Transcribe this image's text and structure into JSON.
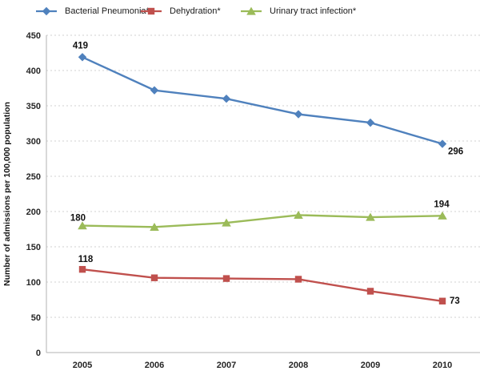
{
  "chart_data": {
    "type": "line",
    "title": "",
    "ylabel": "Number of admissions per 100,000 population",
    "xlabel": "",
    "categories": [
      "2005",
      "2006",
      "2007",
      "2008",
      "2009",
      "2010"
    ],
    "ylim": [
      0,
      450
    ],
    "yticks": [
      0,
      50,
      100,
      150,
      200,
      250,
      300,
      350,
      400,
      450
    ],
    "grid": "horizontal-dotted",
    "legend_position": "top",
    "axis_color": "#b3b3b3",
    "gridline_color": "#d2d2d2",
    "data_label_color": "#111111",
    "series": [
      {
        "name": "Bacterial Pneumonia*",
        "color": "#4F81BD",
        "marker": "diamond",
        "values": [
          419,
          372,
          360,
          338,
          326,
          296
        ],
        "point_labels": [
          {
            "index": 0,
            "text": "419",
            "anchor": "end",
            "dx": 7,
            "dy": -11
          },
          {
            "index": 5,
            "text": "296",
            "anchor": "start",
            "dx": 7,
            "dy": 13
          }
        ]
      },
      {
        "name": "Dehydration*",
        "color": "#C0504D",
        "marker": "square",
        "values": [
          118,
          106,
          105,
          104,
          87,
          73
        ],
        "point_labels": [
          {
            "index": 0,
            "text": "118",
            "anchor": "middle",
            "dx": 4,
            "dy": -9
          },
          {
            "index": 5,
            "text": "73",
            "anchor": "start",
            "dx": 9,
            "dy": 3
          }
        ]
      },
      {
        "name": "Urinary tract infection*",
        "color": "#9BBB59",
        "marker": "triangle",
        "values": [
          180,
          178,
          184,
          195,
          192,
          194
        ],
        "point_labels": [
          {
            "index": 0,
            "text": "180",
            "anchor": "end",
            "dx": 4,
            "dy": -6
          },
          {
            "index": 5,
            "text": "194",
            "anchor": "middle",
            "dx": -1,
            "dy": -11
          }
        ]
      }
    ]
  }
}
